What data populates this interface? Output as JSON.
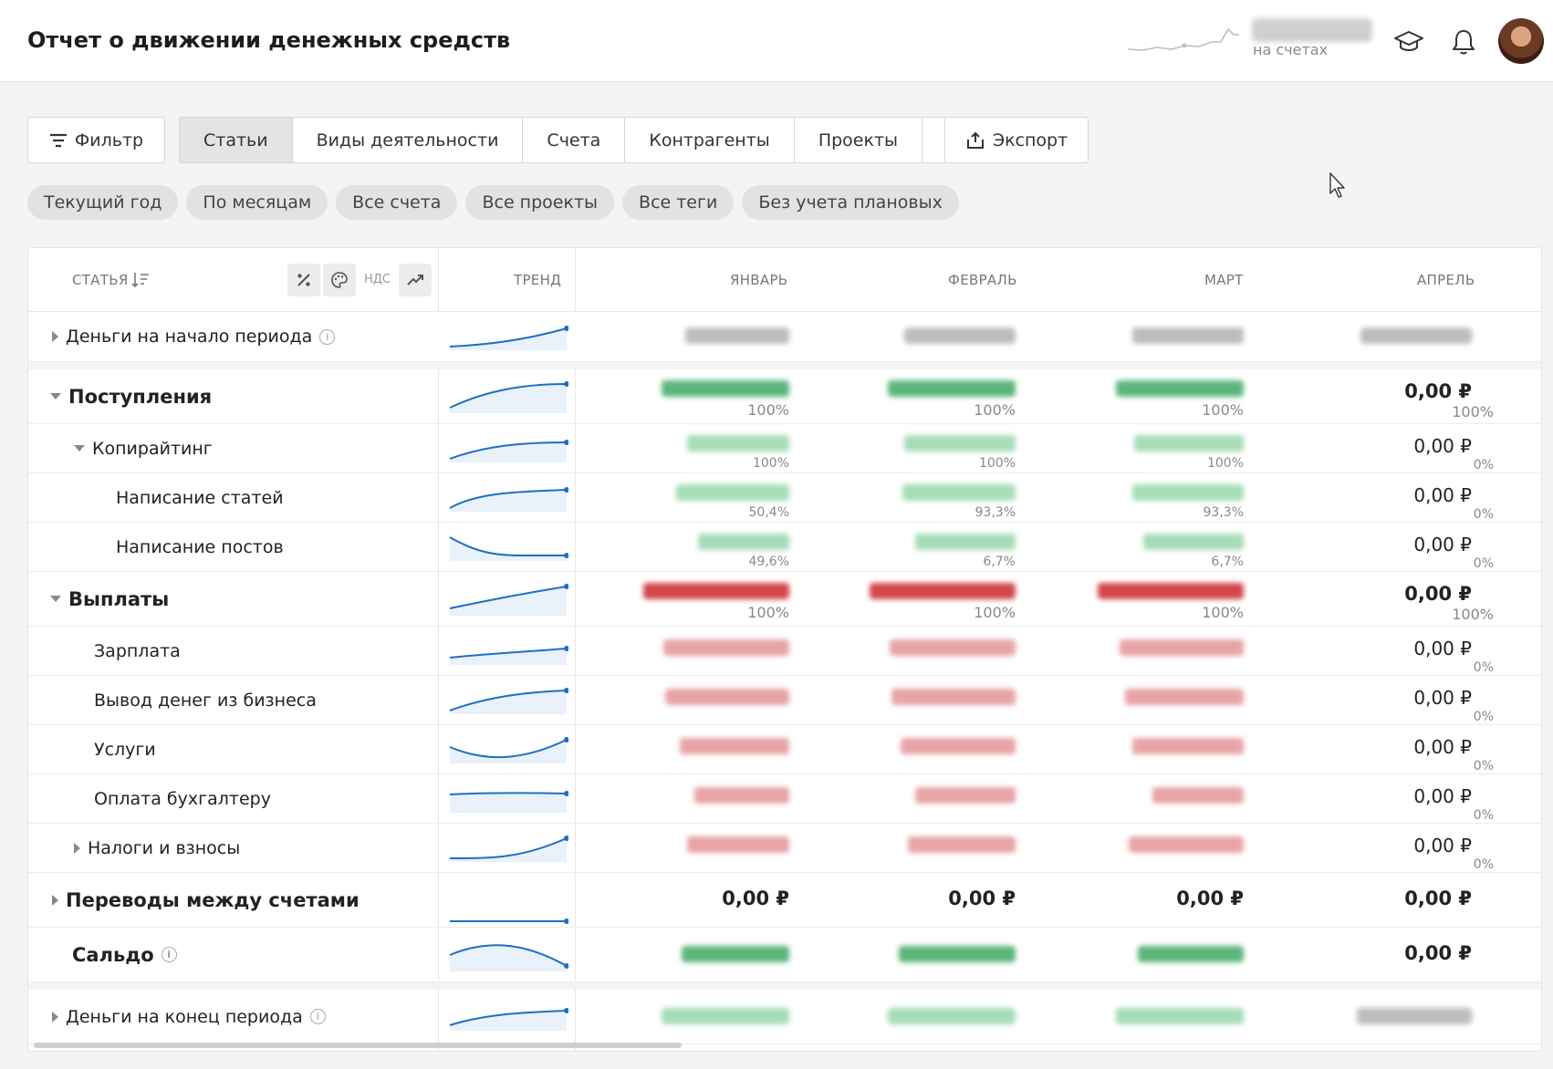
{
  "header": {
    "title": "Отчет о движении денежных средств",
    "balance_caption": "на счетах"
  },
  "toolbar": {
    "filter_label": "Фильтр",
    "tabs": [
      {
        "label": "Статьи",
        "active": true
      },
      {
        "label": "Виды деятельности"
      },
      {
        "label": "Счета"
      },
      {
        "label": "Контрагенты"
      },
      {
        "label": "Проекты"
      }
    ],
    "export_label": "Экспорт"
  },
  "chips": [
    "Текущий год",
    "По месяцам",
    "Все счета",
    "Все проекты",
    "Все теги",
    "Без учета плановых"
  ],
  "table": {
    "headers": {
      "article": "СТАТЬЯ",
      "nds": "НДС",
      "trend": "ТРЕНД",
      "months": [
        "ЯНВАРЬ",
        "ФЕВРАЛЬ",
        "МАРТ",
        "АПРЕЛЬ"
      ]
    },
    "rows": [
      {
        "label": "Деньги на начало периода",
        "april_value": "",
        "april_pct": ""
      },
      {
        "label": "Поступления",
        "jan_pct": "100%",
        "feb_pct": "100%",
        "mar_pct": "100%",
        "april_value": "0,00 ₽",
        "april_pct": "100%"
      },
      {
        "label": "Копирайтинг",
        "jan_pct": "100%",
        "feb_pct": "100%",
        "mar_pct": "100%",
        "april_value": "0,00 ₽",
        "april_pct": "0%"
      },
      {
        "label": "Написание статей",
        "jan_pct": "50,4%",
        "feb_pct": "93,3%",
        "mar_pct": "93,3%",
        "april_value": "0,00 ₽",
        "april_pct": "0%"
      },
      {
        "label": "Написание постов",
        "jan_pct": "49,6%",
        "feb_pct": "6,7%",
        "mar_pct": "6,7%",
        "april_value": "0,00 ₽",
        "april_pct": "0%"
      },
      {
        "label": "Выплаты",
        "jan_pct": "100%",
        "feb_pct": "100%",
        "mar_pct": "100%",
        "april_value": "0,00 ₽",
        "april_pct": "100%"
      },
      {
        "label": "Зарплата",
        "april_value": "0,00 ₽",
        "april_pct": "0%"
      },
      {
        "label": "Вывод денег из бизнеса",
        "april_value": "0,00 ₽",
        "april_pct": "0%"
      },
      {
        "label": "Услуги",
        "april_value": "0,00 ₽",
        "april_pct": "0%"
      },
      {
        "label": "Оплата бухгалтеру",
        "april_value": "0,00 ₽",
        "april_pct": "0%"
      },
      {
        "label": "Налоги и взносы",
        "april_value": "0,00 ₽",
        "april_pct": "0%"
      },
      {
        "label": "Переводы между счетами",
        "jan_value": "0,00 ₽",
        "feb_value": "0,00 ₽",
        "mar_value": "0,00 ₽",
        "april_value": "0,00 ₽"
      },
      {
        "label": "Сальдо",
        "april_value": "0,00 ₽"
      },
      {
        "label": "Деньги на конец периода"
      }
    ]
  },
  "colors": {
    "accent_line": "#1f6fc0",
    "income": "#2f9a59",
    "expense": "#c9302c"
  },
  "icons": [
    "filter-icon",
    "chart-icon",
    "export-icon",
    "graduation-cap-icon",
    "bell-icon",
    "sort-icon",
    "percent-icon",
    "palette-icon",
    "trend-icon",
    "info-icon",
    "caret-icon"
  ]
}
